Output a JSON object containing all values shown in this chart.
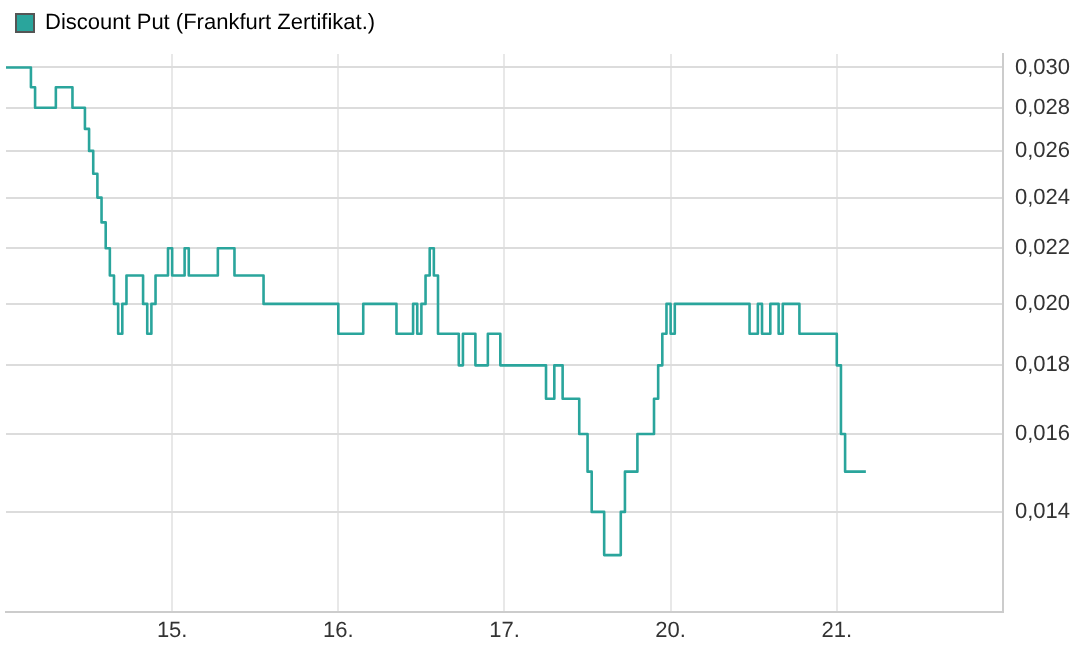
{
  "chart_data": {
    "type": "step",
    "log": "y",
    "grid": true,
    "legend": "top left",
    "marker": "none",
    "line_style": "solid",
    "categories": [
      null,
      null,
      null,
      null,
      null,
      null,
      null,
      null,
      null,
      null,
      null,
      null,
      null,
      null,
      null,
      null,
      null,
      null,
      null,
      null,
      null,
      null,
      null,
      null,
      null,
      null,
      null,
      null,
      null,
      null,
      null,
      null,
      null,
      null,
      null,
      null,
      null,
      null,
      null,
      null,
      "15.",
      null,
      null,
      null,
      null,
      null,
      null,
      null,
      null,
      null,
      null,
      null,
      null,
      null,
      null,
      null,
      null,
      null,
      null,
      null,
      null,
      null,
      null,
      null,
      null,
      null,
      null,
      null,
      null,
      null,
      null,
      null,
      null,
      null,
      null,
      null,
      null,
      null,
      null,
      null,
      "16.",
      null,
      null,
      null,
      null,
      null,
      null,
      null,
      null,
      null,
      null,
      null,
      null,
      null,
      null,
      null,
      null,
      null,
      null,
      null,
      null,
      null,
      null,
      null,
      null,
      null,
      null,
      null,
      null,
      null,
      null,
      null,
      null,
      null,
      null,
      null,
      null,
      null,
      null,
      null,
      "17.",
      null,
      null,
      null,
      null,
      null,
      null,
      null,
      null,
      null,
      null,
      null,
      null,
      null,
      null,
      null,
      null,
      null,
      null,
      null,
      null,
      null,
      null,
      null,
      null,
      null,
      null,
      null,
      null,
      null,
      null,
      null,
      null,
      null,
      null,
      null,
      null,
      null,
      null,
      null,
      "20.",
      null,
      null,
      null,
      null,
      null,
      null,
      null,
      null,
      null,
      null,
      null,
      null,
      null,
      null,
      null,
      null,
      null,
      null,
      null,
      null,
      null,
      null,
      null,
      null,
      null,
      null,
      null,
      null,
      null,
      null,
      null,
      null,
      null,
      null,
      null,
      null,
      null,
      null,
      null,
      "21.",
      null,
      null,
      null,
      null,
      null,
      null,
      null,
      null,
      null,
      null,
      null,
      null,
      null,
      null,
      null,
      null,
      null,
      null,
      null,
      null,
      null,
      null,
      null,
      null,
      null,
      null,
      null,
      null,
      null,
      null,
      null,
      null,
      null,
      null,
      null,
      null,
      null,
      null,
      null,
      null
    ],
    "ylim": [
      0.0118,
      0.0307
    ],
    "yticks": [
      {
        "value": 0.014,
        "label": "0,014"
      },
      {
        "value": 0.016,
        "label": "0,016"
      },
      {
        "value": 0.018,
        "label": "0,018"
      },
      {
        "value": 0.02,
        "label": "0,020"
      },
      {
        "value": 0.022,
        "label": "0,022"
      },
      {
        "value": 0.024,
        "label": "0,024"
      },
      {
        "value": 0.026,
        "label": "0,026"
      },
      {
        "value": 0.028,
        "label": "0,028"
      },
      {
        "value": 0.03,
        "label": "0,030"
      }
    ],
    "series": [
      {
        "name": "Discount Put (Frankfurt Zertifikat.)",
        "color": "#2aa59c",
        "values": [
          0.03,
          0.03,
          0.03,
          0.03,
          0.03,
          0.03,
          0.029,
          0.028,
          0.028,
          0.028,
          0.028,
          0.028,
          0.029,
          0.029,
          0.029,
          0.029,
          0.028,
          0.028,
          0.028,
          0.027,
          0.026,
          0.025,
          0.024,
          0.023,
          0.022,
          0.021,
          0.02,
          0.019,
          0.02,
          0.021,
          0.021,
          0.021,
          0.021,
          0.02,
          0.019,
          0.02,
          0.021,
          0.021,
          0.021,
          0.022,
          0.021,
          0.021,
          0.021,
          0.022,
          0.021,
          0.021,
          0.021,
          0.021,
          0.021,
          0.021,
          0.021,
          0.022,
          0.022,
          0.022,
          0.022,
          0.021,
          0.021,
          0.021,
          0.021,
          0.021,
          0.021,
          0.021,
          0.02,
          0.02,
          0.02,
          0.02,
          0.02,
          0.02,
          0.02,
          0.02,
          0.02,
          0.02,
          0.02,
          0.02,
          0.02,
          0.02,
          0.02,
          0.02,
          0.02,
          0.02,
          0.019,
          0.019,
          0.019,
          0.019,
          0.019,
          0.019,
          0.02,
          0.02,
          0.02,
          0.02,
          0.02,
          0.02,
          0.02,
          0.02,
          0.019,
          0.019,
          0.019,
          0.019,
          0.02,
          0.019,
          0.02,
          0.021,
          0.022,
          0.021,
          0.019,
          0.019,
          0.019,
          0.019,
          0.019,
          0.018,
          0.019,
          0.019,
          0.019,
          0.018,
          0.018,
          0.018,
          0.019,
          0.019,
          0.019,
          0.018,
          0.018,
          0.018,
          0.018,
          0.018,
          0.018,
          0.018,
          0.018,
          0.018,
          0.018,
          0.018,
          0.017,
          0.017,
          0.018,
          0.018,
          0.017,
          0.017,
          0.017,
          0.017,
          0.016,
          0.016,
          0.015,
          0.014,
          0.014,
          0.014,
          0.013,
          0.013,
          0.013,
          0.013,
          0.014,
          0.015,
          0.015,
          0.015,
          0.016,
          0.016,
          0.016,
          0.016,
          0.017,
          0.018,
          0.019,
          0.02,
          0.019,
          0.02,
          0.02,
          0.02,
          0.02,
          0.02,
          0.02,
          0.02,
          0.02,
          0.02,
          0.02,
          0.02,
          0.02,
          0.02,
          0.02,
          0.02,
          0.02,
          0.02,
          0.02,
          0.019,
          0.019,
          0.02,
          0.019,
          0.019,
          0.02,
          0.02,
          0.019,
          0.02,
          0.02,
          0.02,
          0.02,
          0.019,
          0.019,
          0.019,
          0.019,
          0.019,
          0.019,
          0.019,
          0.019,
          0.019,
          0.018,
          0.016,
          0.015,
          0.015,
          0.015,
          0.015,
          0.015,
          0.015,
          null,
          null,
          null,
          null,
          null,
          null,
          null,
          null,
          null,
          null,
          null,
          null,
          null,
          null,
          null,
          null,
          null,
          null,
          null,
          null,
          null,
          null,
          null,
          null,
          null,
          null,
          null,
          null,
          null,
          null,
          null,
          null,
          null
        ]
      }
    ]
  }
}
